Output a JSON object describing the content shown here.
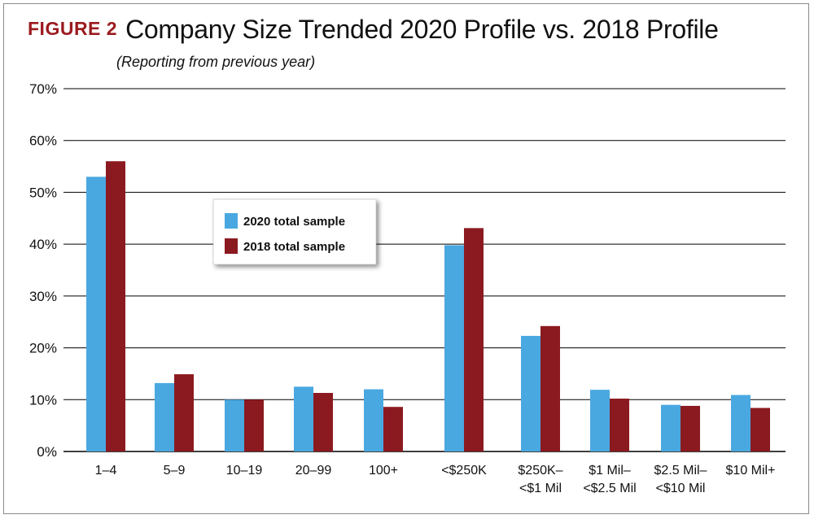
{
  "figure_label": "FIGURE 2",
  "title": "Company Size Trended 2020 Profile vs. 2018 Profile",
  "subtitle": "(Reporting from previous year)",
  "colors": {
    "series_2020": "#4aa8e0",
    "series_2018": "#8b1a20",
    "grid": "#000000"
  },
  "chart_data": {
    "type": "bar",
    "title": "Company Size Trended 2020 Profile vs. 2018 Profile",
    "subtitle": "(Reporting from previous year)",
    "xlabel": "",
    "ylabel": "",
    "ylim": [
      0,
      70
    ],
    "y_ticks": [
      "0%",
      "10%",
      "20%",
      "30%",
      "40%",
      "50%",
      "60%",
      "70%"
    ],
    "grid": true,
    "legend_placement": "upper-center-left",
    "categories": [
      [
        "1–4"
      ],
      [
        "5–9"
      ],
      [
        "10–19"
      ],
      [
        "20–99"
      ],
      [
        "100+"
      ],
      [
        "<$250K"
      ],
      [
        "$250K–",
        "<$1 Mil"
      ],
      [
        "$1 Mil–",
        "<$2.5 Mil"
      ],
      [
        "$2.5 Mil–",
        "<$10 Mil"
      ],
      [
        "$10 Mil+"
      ]
    ],
    "series": [
      {
        "name": "2020 total sample",
        "color": "#4aa8e0",
        "values": [
          53,
          13.2,
          10,
          12.5,
          12,
          39.8,
          22.3,
          11.9,
          9,
          10.9
        ]
      },
      {
        "name": "2018 total sample",
        "color": "#8b1a20",
        "values": [
          56,
          14.9,
          10,
          11.3,
          8.6,
          43.1,
          24.2,
          10.2,
          8.8,
          8.4
        ]
      }
    ]
  }
}
